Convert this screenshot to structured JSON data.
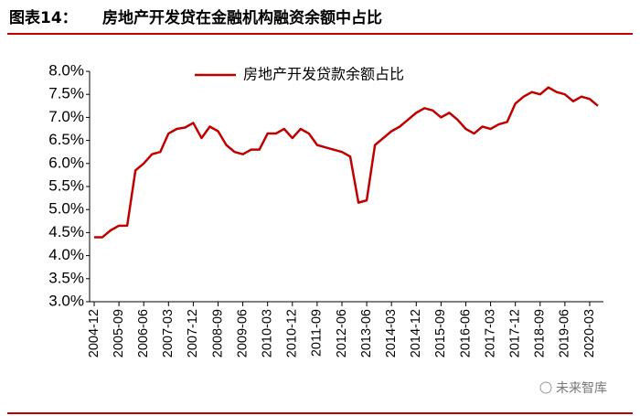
{
  "chart_data": {
    "type": "line",
    "label": "图表14：",
    "title": "房地产开发贷在金融机构融资余额中占比",
    "source": "未来智库",
    "categories": [
      "2004-12",
      null,
      null,
      "2005-09",
      null,
      null,
      "2006-06",
      null,
      null,
      "2007-03",
      null,
      null,
      "2007-12",
      null,
      null,
      "2008-09",
      null,
      null,
      "2009-06",
      null,
      null,
      "2010-03",
      null,
      null,
      "2010-12",
      null,
      null,
      "2011-09",
      null,
      null,
      "2012-06",
      null,
      null,
      "2013-06",
      null,
      null,
      "2014-03",
      null,
      null,
      "2014-12",
      null,
      null,
      "2015-09",
      null,
      null,
      "2016-06",
      null,
      null,
      "2017-03",
      null,
      null,
      "2017-12",
      null,
      null,
      "2018-09",
      null,
      null,
      "2019-06",
      null,
      null,
      "2020-03",
      null
    ],
    "series": [
      {
        "name": "房地产开发贷款余额占比",
        "color": "#c00000",
        "values": [
          4.4,
          4.4,
          4.55,
          4.65,
          4.65,
          5.85,
          6.0,
          6.2,
          6.25,
          6.65,
          6.75,
          6.78,
          6.88,
          6.55,
          6.8,
          6.7,
          6.4,
          6.25,
          6.2,
          6.3,
          6.3,
          6.65,
          6.65,
          6.75,
          6.55,
          6.75,
          6.65,
          6.4,
          6.35,
          6.3,
          6.25,
          6.15,
          5.15,
          5.2,
          6.4,
          6.55,
          6.7,
          6.8,
          6.95,
          7.1,
          7.2,
          7.15,
          7.0,
          7.1,
          6.95,
          6.75,
          6.65,
          6.8,
          6.75,
          6.85,
          6.9,
          7.3,
          7.45,
          7.55,
          7.5,
          7.65,
          7.55,
          7.5,
          7.35,
          7.45,
          7.4,
          7.25
        ]
      }
    ],
    "ylim": [
      3.0,
      8.0
    ],
    "yticks": [
      {
        "value": 3.0,
        "label": "3.0%"
      },
      {
        "value": 3.5,
        "label": "3.5%"
      },
      {
        "value": 4.0,
        "label": "4.0%"
      },
      {
        "value": 4.5,
        "label": "4.5%"
      },
      {
        "value": 5.0,
        "label": "5.0%"
      },
      {
        "value": 5.5,
        "label": "5.5%"
      },
      {
        "value": 6.0,
        "label": "6.0%"
      },
      {
        "value": 6.5,
        "label": "6.5%"
      },
      {
        "value": 7.0,
        "label": "7.0%"
      },
      {
        "value": 7.5,
        "label": "7.5%"
      },
      {
        "value": 8.0,
        "label": "8.0%"
      }
    ],
    "grid": false
  }
}
